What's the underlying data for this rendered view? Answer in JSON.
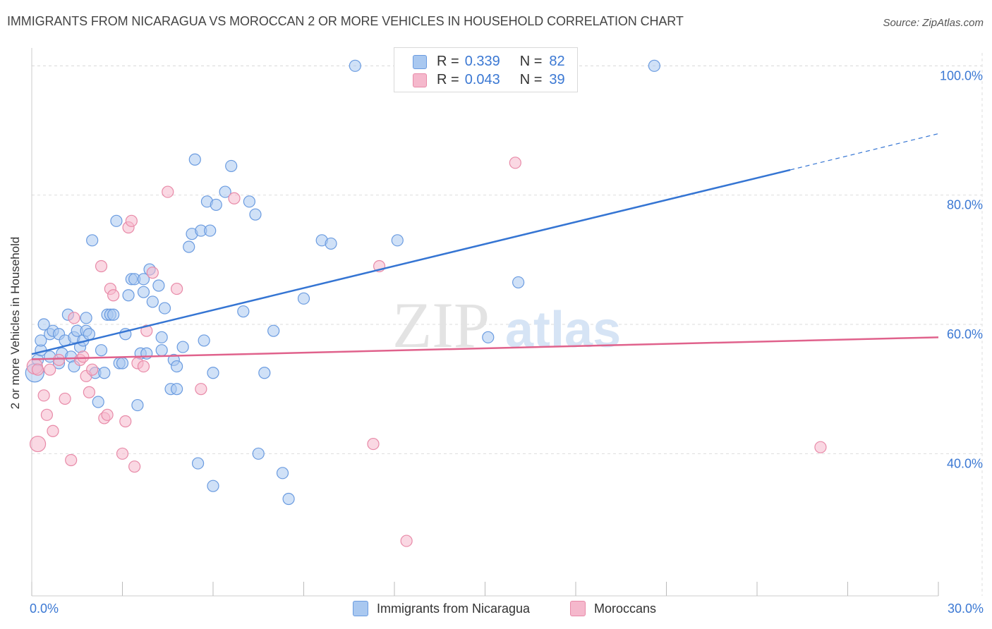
{
  "title": "IMMIGRANTS FROM NICARAGUA VS MOROCCAN 2 OR MORE VEHICLES IN HOUSEHOLD CORRELATION CHART",
  "source": "Source: ZipAtlas.com",
  "watermark": {
    "zip": "ZIP",
    "atlas": "atlas"
  },
  "colors": {
    "blue_fill": "#a9c8f0",
    "blue_stroke": "#6a9be0",
    "blue_line": "#3575d3",
    "pink_fill": "#f5b8cc",
    "pink_stroke": "#e88aa8",
    "pink_line": "#e0628c",
    "axis_text": "#3b78d3",
    "grid": "#dddddd"
  },
  "legend": {
    "rows": [
      {
        "r_label": "R =",
        "r_value": "0.339",
        "n_label": "N =",
        "n_value": "82",
        "color": "#a9c8f0",
        "stroke": "#6a9be0"
      },
      {
        "r_label": "R =",
        "r_value": "0.043",
        "n_label": "N =",
        "n_value": "39",
        "color": "#f5b8cc",
        "stroke": "#e88aa8"
      }
    ]
  },
  "bottom_legend": [
    {
      "label": "Immigrants from Nicaragua",
      "color": "#a9c8f0",
      "stroke": "#6a9be0"
    },
    {
      "label": "Moroccans",
      "color": "#f5b8cc",
      "stroke": "#e88aa8"
    }
  ],
  "chart_data": {
    "type": "scatter",
    "title": "IMMIGRANTS FROM NICARAGUA VS MOROCCAN 2 OR MORE VEHICLES IN HOUSEHOLD CORRELATION CHART",
    "xlabel": "",
    "ylabel": "2 or more Vehicles in Household",
    "xlim": [
      0,
      30
    ],
    "ylim": [
      18,
      102
    ],
    "x_tick_labels": [
      {
        "value": 0,
        "label": "0.0%"
      },
      {
        "value": 30,
        "label": "30.0%"
      }
    ],
    "y_tick_labels": [
      {
        "value": 40,
        "label": "40.0%"
      },
      {
        "value": 60,
        "label": "60.0%"
      },
      {
        "value": 80,
        "label": "80.0%"
      },
      {
        "value": 100,
        "label": "100.0%"
      }
    ],
    "x_minor_ticks": [
      0,
      3,
      6,
      9,
      12,
      15,
      18,
      21,
      24,
      27,
      30
    ],
    "series": [
      {
        "name": "Immigrants from Nicaragua",
        "R": 0.339,
        "N": 82,
        "trend": {
          "x0": 0,
          "y0": 55.4,
          "x1": 25.1,
          "y1": 83.9,
          "dash_to_x": 30,
          "dash_to_y": 89.5
        },
        "points": [
          [
            0.1,
            52.5
          ],
          [
            0.2,
            54.5
          ],
          [
            0.3,
            56.0
          ],
          [
            0.3,
            57.5
          ],
          [
            0.4,
            60.0
          ],
          [
            0.6,
            55.0
          ],
          [
            0.6,
            58.5
          ],
          [
            0.7,
            59.0
          ],
          [
            0.9,
            58.5
          ],
          [
            0.9,
            54.0
          ],
          [
            1.0,
            55.5
          ],
          [
            1.1,
            57.5
          ],
          [
            1.2,
            61.5
          ],
          [
            1.3,
            55.0
          ],
          [
            1.4,
            58.0
          ],
          [
            1.4,
            53.5
          ],
          [
            1.5,
            59.0
          ],
          [
            1.6,
            56.5
          ],
          [
            1.7,
            57.5
          ],
          [
            1.8,
            59.0
          ],
          [
            1.8,
            61.0
          ],
          [
            1.9,
            58.5
          ],
          [
            2.0,
            73.0
          ],
          [
            2.1,
            52.5
          ],
          [
            2.2,
            48.0
          ],
          [
            2.3,
            56.0
          ],
          [
            2.4,
            52.5
          ],
          [
            2.5,
            61.5
          ],
          [
            2.6,
            61.5
          ],
          [
            2.7,
            61.5
          ],
          [
            2.8,
            76.0
          ],
          [
            2.9,
            54.0
          ],
          [
            3.0,
            54.0
          ],
          [
            3.1,
            58.5
          ],
          [
            3.2,
            64.5
          ],
          [
            3.3,
            67.0
          ],
          [
            3.4,
            67.0
          ],
          [
            3.5,
            47.5
          ],
          [
            3.6,
            55.5
          ],
          [
            3.7,
            65.0
          ],
          [
            3.7,
            67.0
          ],
          [
            3.8,
            55.5
          ],
          [
            3.9,
            68.5
          ],
          [
            4.0,
            63.5
          ],
          [
            4.2,
            66.0
          ],
          [
            4.3,
            56.0
          ],
          [
            4.3,
            58.0
          ],
          [
            4.4,
            62.5
          ],
          [
            4.6,
            50.0
          ],
          [
            4.7,
            54.5
          ],
          [
            4.8,
            53.5
          ],
          [
            4.8,
            50.0
          ],
          [
            5.0,
            56.5
          ],
          [
            5.2,
            72.0
          ],
          [
            5.3,
            74.0
          ],
          [
            5.4,
            85.5
          ],
          [
            5.5,
            38.5
          ],
          [
            5.6,
            74.5
          ],
          [
            5.7,
            57.5
          ],
          [
            5.8,
            79.0
          ],
          [
            5.9,
            74.5
          ],
          [
            6.0,
            52.5
          ],
          [
            6.0,
            35.0
          ],
          [
            6.1,
            78.5
          ],
          [
            6.4,
            80.5
          ],
          [
            6.6,
            84.5
          ],
          [
            7.0,
            62.0
          ],
          [
            7.2,
            79.0
          ],
          [
            7.4,
            77.0
          ],
          [
            7.5,
            40.0
          ],
          [
            7.7,
            52.5
          ],
          [
            8.0,
            59.0
          ],
          [
            8.3,
            37.0
          ],
          [
            8.5,
            33.0
          ],
          [
            9.0,
            64.0
          ],
          [
            9.6,
            73.0
          ],
          [
            9.9,
            72.5
          ],
          [
            10.7,
            100.0
          ],
          [
            12.1,
            73.0
          ],
          [
            15.1,
            58.0
          ],
          [
            16.1,
            66.5
          ],
          [
            20.6,
            100.0
          ]
        ]
      },
      {
        "name": "Moroccans",
        "R": 0.043,
        "N": 39,
        "trend": {
          "x0": 0,
          "y0": 54.6,
          "x1": 30,
          "y1": 58.0
        },
        "points": [
          [
            0.1,
            53.5
          ],
          [
            0.2,
            53.0
          ],
          [
            0.2,
            41.5
          ],
          [
            0.4,
            49.0
          ],
          [
            0.5,
            46.0
          ],
          [
            0.6,
            53.0
          ],
          [
            0.7,
            43.5
          ],
          [
            0.9,
            54.5
          ],
          [
            1.1,
            48.5
          ],
          [
            1.3,
            39.0
          ],
          [
            1.4,
            61.0
          ],
          [
            1.6,
            54.5
          ],
          [
            1.7,
            55.0
          ],
          [
            1.8,
            52.0
          ],
          [
            1.9,
            49.5
          ],
          [
            2.0,
            53.0
          ],
          [
            2.3,
            69.0
          ],
          [
            2.4,
            45.5
          ],
          [
            2.5,
            46.0
          ],
          [
            2.6,
            65.5
          ],
          [
            2.7,
            64.5
          ],
          [
            3.0,
            40.0
          ],
          [
            3.1,
            45.0
          ],
          [
            3.2,
            75.0
          ],
          [
            3.3,
            76.0
          ],
          [
            3.4,
            38.0
          ],
          [
            3.5,
            54.0
          ],
          [
            3.7,
            53.5
          ],
          [
            3.8,
            59.0
          ],
          [
            4.0,
            68.0
          ],
          [
            4.5,
            80.5
          ],
          [
            4.8,
            65.5
          ],
          [
            5.6,
            50.0
          ],
          [
            6.7,
            79.5
          ],
          [
            11.3,
            41.5
          ],
          [
            11.5,
            69.0
          ],
          [
            12.4,
            26.5
          ],
          [
            16.0,
            85.0
          ],
          [
            26.1,
            41.0
          ]
        ]
      }
    ]
  }
}
